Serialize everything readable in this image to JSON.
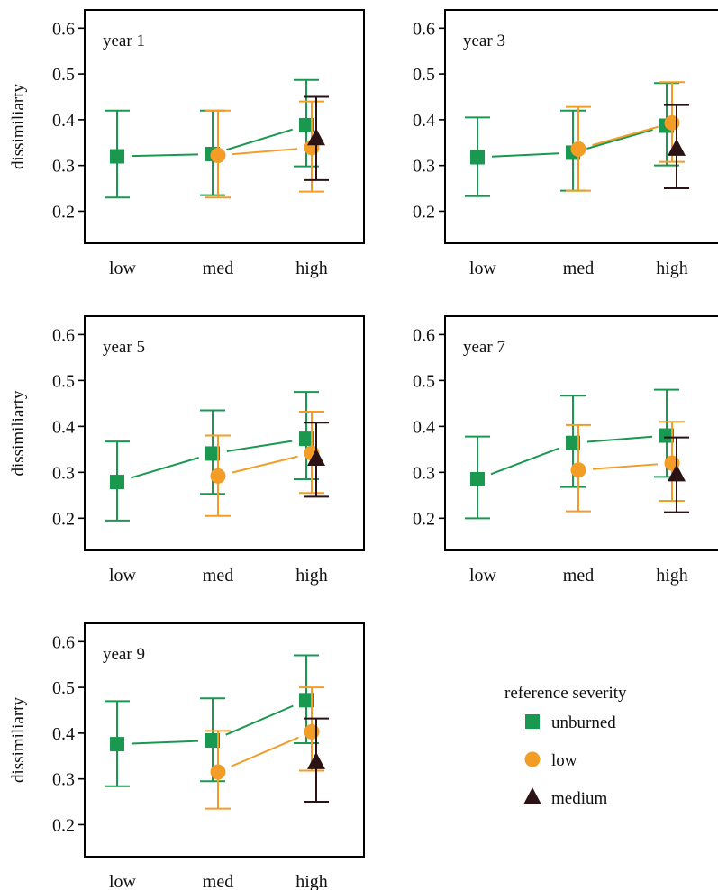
{
  "colors": {
    "unburned": "#1a9850",
    "low": "#f39c26",
    "medium": "#2b1214",
    "frame": "#000000"
  },
  "legend": {
    "title": "reference severity",
    "items": [
      {
        "key": "unburned",
        "label": "unburned",
        "marker": "square"
      },
      {
        "key": "low",
        "label": "low",
        "marker": "circle"
      },
      {
        "key": "medium",
        "label": "medium",
        "marker": "triangle"
      }
    ]
  },
  "chart_data": [
    {
      "type": "scatter",
      "title": "year 1",
      "xlabel": "",
      "ylabel": "dissimiliarty",
      "categories": [
        "low",
        "med",
        "high"
      ],
      "ylim": [
        0.13,
        0.64
      ],
      "yticks": [
        0.2,
        0.3,
        0.4,
        0.5,
        0.6
      ],
      "series": [
        {
          "name": "unburned",
          "points": [
            {
              "x": "low",
              "y": 0.32,
              "lo": 0.23,
              "hi": 0.42
            },
            {
              "x": "med",
              "y": 0.325,
              "lo": 0.235,
              "hi": 0.42
            },
            {
              "x": "high",
              "y": 0.388,
              "lo": 0.298,
              "hi": 0.487
            }
          ]
        },
        {
          "name": "low",
          "points": [
            {
              "x": "med",
              "y": 0.322,
              "lo": 0.23,
              "hi": 0.42
            },
            {
              "x": "high",
              "y": 0.339,
              "lo": 0.243,
              "hi": 0.44
            }
          ]
        },
        {
          "name": "medium",
          "points": [
            {
              "x": "high",
              "y": 0.36,
              "lo": 0.268,
              "hi": 0.45
            }
          ]
        }
      ]
    },
    {
      "type": "scatter",
      "title": "year 3",
      "xlabel": "",
      "ylabel": "",
      "categories": [
        "low",
        "med",
        "high"
      ],
      "ylim": [
        0.13,
        0.64
      ],
      "yticks": [
        0.2,
        0.3,
        0.4,
        0.5,
        0.6
      ],
      "series": [
        {
          "name": "unburned",
          "points": [
            {
              "x": "low",
              "y": 0.318,
              "lo": 0.233,
              "hi": 0.405
            },
            {
              "x": "med",
              "y": 0.328,
              "lo": 0.245,
              "hi": 0.42
            },
            {
              "x": "high",
              "y": 0.387,
              "lo": 0.3,
              "hi": 0.48
            }
          ]
        },
        {
          "name": "low",
          "points": [
            {
              "x": "med",
              "y": 0.336,
              "lo": 0.245,
              "hi": 0.428
            },
            {
              "x": "high",
              "y": 0.393,
              "lo": 0.308,
              "hi": 0.482
            }
          ]
        },
        {
          "name": "medium",
          "points": [
            {
              "x": "high",
              "y": 0.337,
              "lo": 0.25,
              "hi": 0.432
            }
          ]
        }
      ]
    },
    {
      "type": "scatter",
      "title": "year 5",
      "xlabel": "",
      "ylabel": "dissimiliarty",
      "categories": [
        "low",
        "med",
        "high"
      ],
      "ylim": [
        0.13,
        0.64
      ],
      "yticks": [
        0.2,
        0.3,
        0.4,
        0.5,
        0.6
      ],
      "series": [
        {
          "name": "unburned",
          "points": [
            {
              "x": "low",
              "y": 0.279,
              "lo": 0.195,
              "hi": 0.367
            },
            {
              "x": "med",
              "y": 0.341,
              "lo": 0.253,
              "hi": 0.435
            },
            {
              "x": "high",
              "y": 0.373,
              "lo": 0.285,
              "hi": 0.475
            }
          ]
        },
        {
          "name": "low",
          "points": [
            {
              "x": "med",
              "y": 0.292,
              "lo": 0.205,
              "hi": 0.38
            },
            {
              "x": "high",
              "y": 0.342,
              "lo": 0.255,
              "hi": 0.432
            }
          ]
        },
        {
          "name": "medium",
          "points": [
            {
              "x": "high",
              "y": 0.33,
              "lo": 0.247,
              "hi": 0.408
            }
          ]
        }
      ]
    },
    {
      "type": "scatter",
      "title": "year 7",
      "xlabel": "",
      "ylabel": "",
      "categories": [
        "low",
        "med",
        "high"
      ],
      "ylim": [
        0.13,
        0.64
      ],
      "yticks": [
        0.2,
        0.3,
        0.4,
        0.5,
        0.6
      ],
      "series": [
        {
          "name": "unburned",
          "points": [
            {
              "x": "low",
              "y": 0.285,
              "lo": 0.2,
              "hi": 0.378
            },
            {
              "x": "med",
              "y": 0.364,
              "lo": 0.268,
              "hi": 0.467
            },
            {
              "x": "high",
              "y": 0.38,
              "lo": 0.29,
              "hi": 0.48
            }
          ]
        },
        {
          "name": "low",
          "points": [
            {
              "x": "med",
              "y": 0.305,
              "lo": 0.215,
              "hi": 0.403
            },
            {
              "x": "high",
              "y": 0.32,
              "lo": 0.238,
              "hi": 0.41
            }
          ]
        },
        {
          "name": "medium",
          "points": [
            {
              "x": "high",
              "y": 0.296,
              "lo": 0.213,
              "hi": 0.376
            }
          ]
        }
      ]
    },
    {
      "type": "scatter",
      "title": "year 9",
      "xlabel": "",
      "ylabel": "dissimiliarty",
      "categories": [
        "low",
        "med",
        "high"
      ],
      "ylim": [
        0.13,
        0.64
      ],
      "yticks": [
        0.2,
        0.3,
        0.4,
        0.5,
        0.6
      ],
      "series": [
        {
          "name": "unburned",
          "points": [
            {
              "x": "low",
              "y": 0.376,
              "lo": 0.284,
              "hi": 0.47
            },
            {
              "x": "med",
              "y": 0.384,
              "lo": 0.295,
              "hi": 0.476
            },
            {
              "x": "high",
              "y": 0.472,
              "lo": 0.378,
              "hi": 0.57
            }
          ]
        },
        {
          "name": "low",
          "points": [
            {
              "x": "med",
              "y": 0.315,
              "lo": 0.235,
              "hi": 0.405
            },
            {
              "x": "high",
              "y": 0.403,
              "lo": 0.318,
              "hi": 0.5
            }
          ]
        },
        {
          "name": "medium",
          "points": [
            {
              "x": "high",
              "y": 0.337,
              "lo": 0.25,
              "hi": 0.432
            }
          ]
        }
      ]
    }
  ]
}
